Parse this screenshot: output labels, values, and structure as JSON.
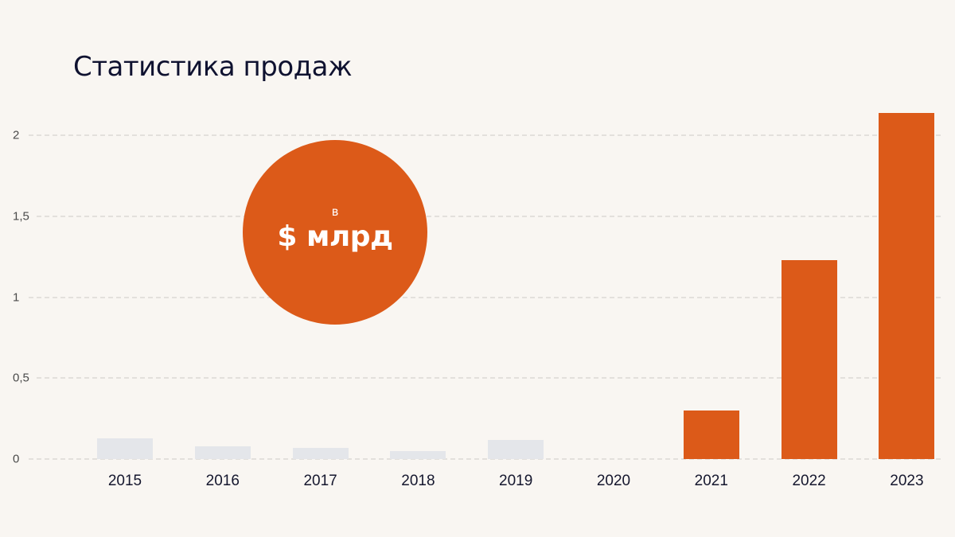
{
  "title": "Статистика продаж",
  "badge": {
    "small": "в",
    "big": "$ млрд",
    "color": "#dc5a19"
  },
  "colors": {
    "orange": "#dc5a19",
    "grey": "#e4e6ea",
    "background": "#f9f6f2",
    "grid": "#e3e0dc"
  },
  "y_ticks": [
    "0",
    "0,5",
    "1",
    "1,5",
    "2"
  ],
  "chart_data": {
    "type": "bar",
    "title": "Статистика продаж",
    "xlabel": "",
    "ylabel": "в $ млрд",
    "ylim": [
      0,
      2.2
    ],
    "yticks": [
      0,
      0.5,
      1,
      1.5,
      2
    ],
    "grid": true,
    "categories": [
      "2015",
      "2016",
      "2017",
      "2018",
      "2019",
      "2020",
      "2021",
      "2022",
      "2023"
    ],
    "values": [
      0.13,
      0.08,
      0.07,
      0.05,
      0.12,
      0,
      0.3,
      1.23,
      2.14
    ],
    "bar_colors": [
      "#e4e6ea",
      "#e4e6ea",
      "#e4e6ea",
      "#e4e6ea",
      "#e4e6ea",
      "#e4e6ea",
      "#dc5a19",
      "#dc5a19",
      "#dc5a19"
    ],
    "annotations": [
      "в $ млрд"
    ]
  }
}
